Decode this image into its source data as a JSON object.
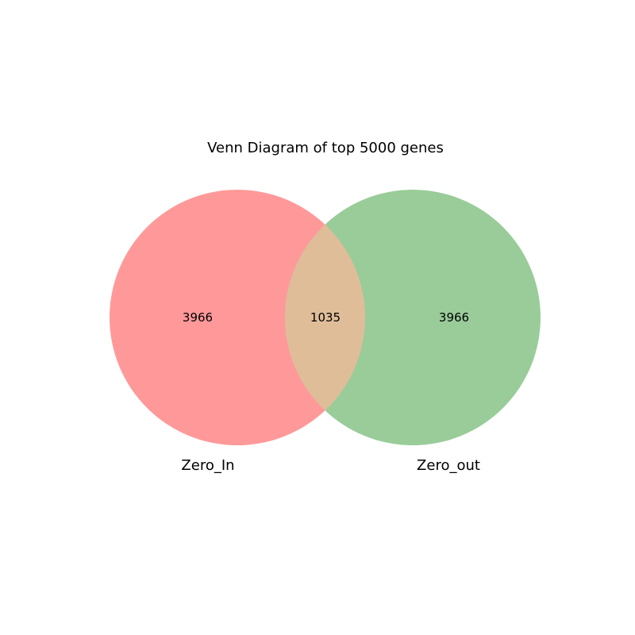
{
  "title": "Venn Diagram of top 5000 genes",
  "sets": [
    {
      "name": "Zero_In",
      "color": "#ff9999",
      "only_count": "3966"
    },
    {
      "name": "Zero_out",
      "color": "#99cc99",
      "only_count": "3966"
    }
  ],
  "intersection": {
    "count": "1035",
    "color": "#e0bd99"
  }
}
